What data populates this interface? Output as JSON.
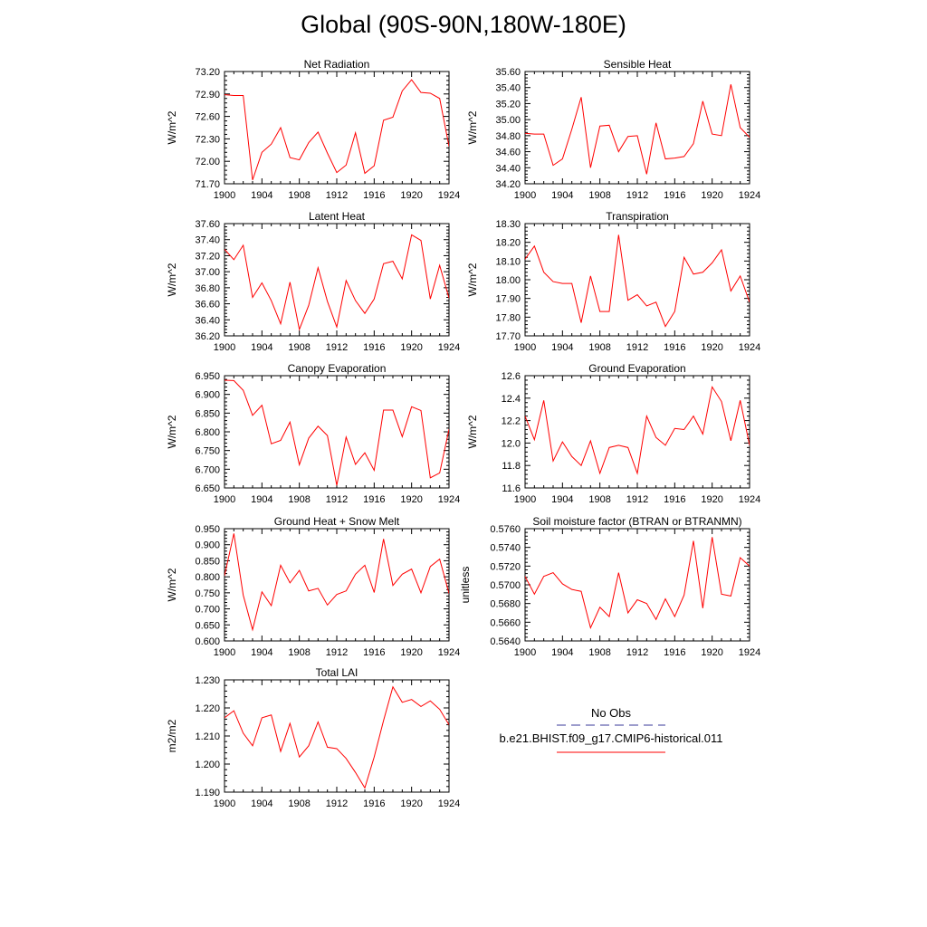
{
  "page_title": "Global (90S-90N,180W-180E)",
  "colors": {
    "model_line": "#ff0000",
    "obs_line": "#3a3a9a",
    "axis": "#000000"
  },
  "legend": {
    "obs_label": "No Obs",
    "model_label": "b.e21.BHIST.f09_g17.CMIP6-historical.011"
  },
  "chart_data": [
    {
      "type": "line",
      "title": "Net Radiation",
      "ylabel": "W/m^2",
      "xlim": [
        1900,
        1924
      ],
      "ylim": [
        71.7,
        73.2
      ],
      "xticks": [
        "1900",
        "1904",
        "1908",
        "1912",
        "1916",
        "1920",
        "1924"
      ],
      "yticks": [
        "71.70",
        "72.00",
        "72.30",
        "72.60",
        "72.90",
        "73.20"
      ],
      "x": [
        1900,
        1901,
        1902,
        1903,
        1904,
        1905,
        1906,
        1907,
        1908,
        1909,
        1910,
        1911,
        1912,
        1913,
        1914,
        1915,
        1916,
        1917,
        1918,
        1919,
        1920,
        1921,
        1922,
        1923,
        1924
      ],
      "series": [
        {
          "values": [
            72.89,
            72.88,
            72.88,
            71.75,
            72.12,
            72.23,
            72.45,
            72.05,
            72.02,
            72.25,
            72.39,
            72.11,
            71.85,
            71.95,
            72.38,
            71.84,
            71.94,
            72.55,
            72.59,
            72.94,
            73.09,
            72.92,
            72.91,
            72.84,
            72.2
          ]
        }
      ],
      "grid": false
    },
    {
      "type": "line",
      "title": "Sensible Heat",
      "ylabel": "W/m^2",
      "xlim": [
        1900,
        1924
      ],
      "ylim": [
        34.2,
        35.6
      ],
      "xticks": [
        "1900",
        "1904",
        "1908",
        "1912",
        "1916",
        "1920",
        "1924"
      ],
      "yticks": [
        "34.20",
        "34.40",
        "34.60",
        "34.80",
        "35.00",
        "35.20",
        "35.40",
        "35.60"
      ],
      "x": [
        1900,
        1901,
        1902,
        1903,
        1904,
        1905,
        1906,
        1907,
        1908,
        1909,
        1910,
        1911,
        1912,
        1913,
        1914,
        1915,
        1916,
        1917,
        1918,
        1919,
        1920,
        1921,
        1922,
        1923,
        1924
      ],
      "series": [
        {
          "values": [
            34.83,
            34.82,
            34.82,
            34.43,
            34.51,
            34.88,
            35.28,
            34.4,
            34.92,
            34.93,
            34.6,
            34.79,
            34.8,
            34.32,
            34.96,
            34.51,
            34.52,
            34.54,
            34.7,
            35.23,
            34.82,
            34.8,
            35.44,
            34.9,
            34.78
          ]
        }
      ],
      "grid": false
    },
    {
      "type": "line",
      "title": "Latent Heat",
      "ylabel": "W/m^2",
      "xlim": [
        1900,
        1924
      ],
      "ylim": [
        36.2,
        37.6
      ],
      "xticks": [
        "1900",
        "1904",
        "1908",
        "1912",
        "1916",
        "1920",
        "1924"
      ],
      "yticks": [
        "36.20",
        "36.40",
        "36.60",
        "36.80",
        "37.00",
        "37.20",
        "37.40",
        "37.60"
      ],
      "x": [
        1900,
        1901,
        1902,
        1903,
        1904,
        1905,
        1906,
        1907,
        1908,
        1909,
        1910,
        1911,
        1912,
        1913,
        1914,
        1915,
        1916,
        1917,
        1918,
        1919,
        1920,
        1921,
        1922,
        1923,
        1924
      ],
      "series": [
        {
          "values": [
            37.28,
            37.15,
            37.33,
            36.68,
            36.86,
            36.64,
            36.35,
            36.87,
            36.28,
            36.58,
            37.05,
            36.63,
            36.31,
            36.89,
            36.64,
            36.48,
            36.66,
            37.1,
            37.13,
            36.91,
            37.46,
            37.39,
            36.66,
            37.08,
            36.67
          ]
        }
      ],
      "grid": false
    },
    {
      "type": "line",
      "title": "Transpiration",
      "ylabel": "W/m^2",
      "xlim": [
        1900,
        1924
      ],
      "ylim": [
        17.7,
        18.3
      ],
      "xticks": [
        "1900",
        "1904",
        "1908",
        "1912",
        "1916",
        "1920",
        "1924"
      ],
      "yticks": [
        "17.70",
        "17.80",
        "17.90",
        "18.00",
        "18.10",
        "18.20",
        "18.30"
      ],
      "x": [
        1900,
        1901,
        1902,
        1903,
        1904,
        1905,
        1906,
        1907,
        1908,
        1909,
        1910,
        1911,
        1912,
        1913,
        1914,
        1915,
        1916,
        1917,
        1918,
        1919,
        1920,
        1921,
        1922,
        1923,
        1924
      ],
      "series": [
        {
          "values": [
            18.11,
            18.18,
            18.04,
            17.99,
            17.98,
            17.98,
            17.77,
            18.02,
            17.83,
            17.83,
            18.24,
            17.89,
            17.92,
            17.86,
            17.88,
            17.75,
            17.83,
            18.12,
            18.03,
            18.04,
            18.09,
            18.16,
            17.94,
            18.02,
            17.88
          ]
        }
      ],
      "grid": false
    },
    {
      "type": "line",
      "title": "Canopy Evaporation",
      "ylabel": "W/m^2",
      "xlim": [
        1900,
        1924
      ],
      "ylim": [
        6.65,
        6.95
      ],
      "xticks": [
        "1900",
        "1904",
        "1908",
        "1912",
        "1916",
        "1920",
        "1924"
      ],
      "yticks": [
        "6.650",
        "6.700",
        "6.750",
        "6.800",
        "6.850",
        "6.900",
        "6.950"
      ],
      "x": [
        1900,
        1901,
        1902,
        1903,
        1904,
        1905,
        1906,
        1907,
        1908,
        1909,
        1910,
        1911,
        1912,
        1913,
        1914,
        1915,
        1916,
        1917,
        1918,
        1919,
        1920,
        1921,
        1922,
        1923,
        1924
      ],
      "series": [
        {
          "values": [
            6.938,
            6.937,
            6.911,
            6.844,
            6.871,
            6.768,
            6.777,
            6.826,
            6.712,
            6.783,
            6.815,
            6.79,
            6.657,
            6.786,
            6.713,
            6.744,
            6.697,
            6.858,
            6.858,
            6.787,
            6.867,
            6.857,
            6.677,
            6.69,
            6.807
          ]
        }
      ],
      "grid": false
    },
    {
      "type": "line",
      "title": "Ground Evaporation",
      "ylabel": "W/m^2",
      "xlim": [
        1900,
        1924
      ],
      "ylim": [
        11.6,
        12.6
      ],
      "xticks": [
        "1900",
        "1904",
        "1908",
        "1912",
        "1916",
        "1920",
        "1924"
      ],
      "yticks": [
        "11.6",
        "11.8",
        "12.0",
        "12.2",
        "12.4",
        "12.6"
      ],
      "x": [
        1900,
        1901,
        1902,
        1903,
        1904,
        1905,
        1906,
        1907,
        1908,
        1909,
        1910,
        1911,
        1912,
        1913,
        1914,
        1915,
        1916,
        1917,
        1918,
        1919,
        1920,
        1921,
        1922,
        1923,
        1924
      ],
      "series": [
        {
          "values": [
            12.24,
            12.03,
            12.38,
            11.84,
            12.01,
            11.88,
            11.8,
            12.02,
            11.73,
            11.96,
            11.98,
            11.96,
            11.73,
            12.24,
            12.05,
            11.98,
            12.13,
            12.12,
            12.24,
            12.08,
            12.5,
            12.37,
            12.02,
            12.38,
            11.98
          ]
        }
      ],
      "grid": false
    },
    {
      "type": "line",
      "title": "Ground Heat + Snow Melt",
      "ylabel": "W/m^2",
      "xlim": [
        1900,
        1924
      ],
      "ylim": [
        0.6,
        0.95
      ],
      "xticks": [
        "1900",
        "1904",
        "1908",
        "1912",
        "1916",
        "1920",
        "1924"
      ],
      "yticks": [
        "0.600",
        "0.650",
        "0.700",
        "0.750",
        "0.800",
        "0.850",
        "0.900",
        "0.950"
      ],
      "x": [
        1900,
        1901,
        1902,
        1903,
        1904,
        1905,
        1906,
        1907,
        1908,
        1909,
        1910,
        1911,
        1912,
        1913,
        1914,
        1915,
        1916,
        1917,
        1918,
        1919,
        1920,
        1921,
        1922,
        1923,
        1924
      ],
      "series": [
        {
          "values": [
            0.803,
            0.935,
            0.743,
            0.635,
            0.753,
            0.71,
            0.836,
            0.781,
            0.82,
            0.756,
            0.764,
            0.712,
            0.745,
            0.756,
            0.808,
            0.836,
            0.751,
            0.918,
            0.773,
            0.808,
            0.824,
            0.75,
            0.832,
            0.855,
            0.748
          ]
        }
      ],
      "grid": false
    },
    {
      "type": "line",
      "title": "Soil moisture factor (BTRAN or BTRANMN)",
      "ylabel": "unitless",
      "xlim": [
        1900,
        1924
      ],
      "ylim": [
        0.564,
        0.576
      ],
      "xticks": [
        "1900",
        "1904",
        "1908",
        "1912",
        "1916",
        "1920",
        "1924"
      ],
      "yticks": [
        "0.5640",
        "0.5660",
        "0.5680",
        "0.5700",
        "0.5720",
        "0.5740",
        "0.5760"
      ],
      "x": [
        1900,
        1901,
        1902,
        1903,
        1904,
        1905,
        1906,
        1907,
        1908,
        1909,
        1910,
        1911,
        1912,
        1913,
        1914,
        1915,
        1916,
        1917,
        1918,
        1919,
        1920,
        1921,
        1922,
        1923,
        1924
      ],
      "series": [
        {
          "values": [
            0.5709,
            0.569,
            0.5709,
            0.5713,
            0.5701,
            0.5695,
            0.5693,
            0.5654,
            0.5676,
            0.5666,
            0.5713,
            0.567,
            0.5684,
            0.568,
            0.5663,
            0.5685,
            0.5666,
            0.5689,
            0.5747,
            0.5675,
            0.5751,
            0.569,
            0.5688,
            0.5729,
            0.572
          ]
        }
      ],
      "grid": false
    },
    {
      "type": "line",
      "title": "Total LAI",
      "ylabel": "m2/m2",
      "xlim": [
        1900,
        1924
      ],
      "ylim": [
        1.19,
        1.23
      ],
      "xticks": [
        "1900",
        "1904",
        "1908",
        "1912",
        "1916",
        "1920",
        "1924"
      ],
      "yticks": [
        "1.190",
        "1.200",
        "1.210",
        "1.220",
        "1.230"
      ],
      "x": [
        1900,
        1901,
        1902,
        1903,
        1904,
        1905,
        1906,
        1907,
        1908,
        1909,
        1910,
        1911,
        1912,
        1913,
        1914,
        1915,
        1916,
        1917,
        1918,
        1919,
        1920,
        1921,
        1922,
        1923,
        1924
      ],
      "series": [
        {
          "values": [
            1.2165,
            1.219,
            1.211,
            1.2065,
            1.2165,
            1.2175,
            1.2045,
            1.2145,
            1.2025,
            1.2065,
            1.215,
            1.206,
            1.2055,
            1.202,
            1.197,
            1.1915,
            1.2025,
            1.2155,
            1.2275,
            1.222,
            1.223,
            1.2205,
            1.2225,
            1.2195,
            1.214
          ]
        }
      ],
      "grid": false
    }
  ]
}
